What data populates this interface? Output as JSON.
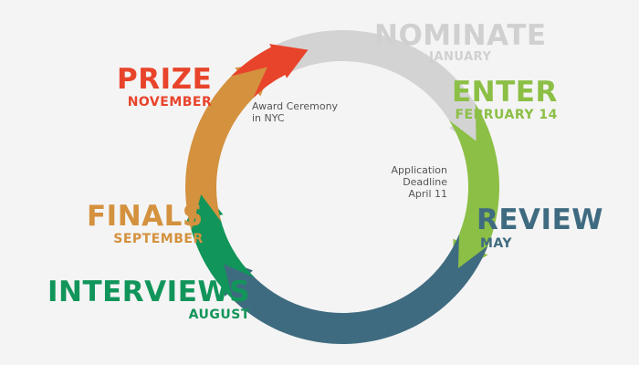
{
  "stages": [
    {
      "key": "nominate",
      "title": "NOMINATE",
      "date": "JANUARY",
      "color": "#d3d3d3"
    },
    {
      "key": "enter",
      "title": "ENTER",
      "date": "FEBRUARY 14",
      "color": "#8cbf45"
    },
    {
      "key": "review",
      "title": "REVIEW",
      "date": "MAY",
      "color": "#3f6b80"
    },
    {
      "key": "interviews",
      "title": "INTERVIEWS",
      "date": "AUGUST",
      "color": "#11955a"
    },
    {
      "key": "finals",
      "title": "FINALS",
      "date": "SEPTEMBER",
      "color": "#d4913e"
    },
    {
      "key": "prize",
      "title": "PRIZE",
      "date": "NOVEMBER",
      "color": "#e8442b"
    }
  ],
  "notes": {
    "award": {
      "line1": "Award Ceremony",
      "line2": "in NYC"
    },
    "deadline": {
      "line1": "Application",
      "line2": "Deadline",
      "line3": "April 11"
    }
  }
}
